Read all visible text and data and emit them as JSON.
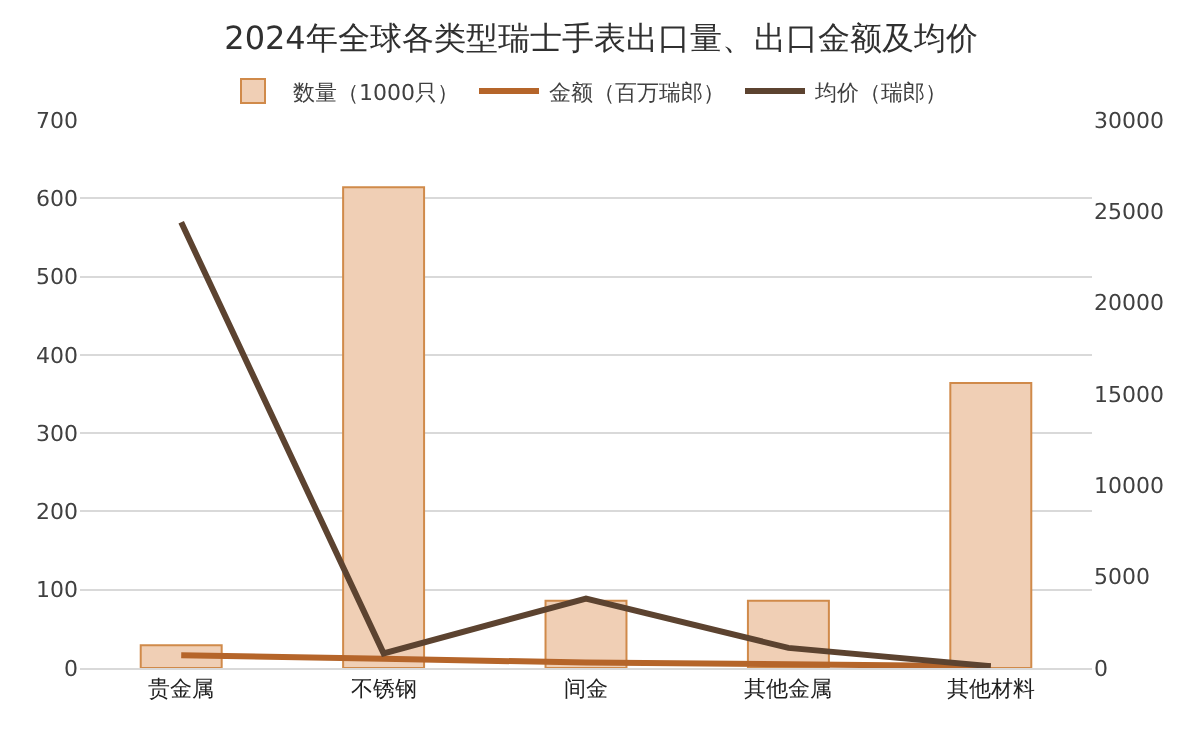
{
  "chart_data": {
    "type": "bar",
    "title": "2024年全球各类型瑞士手表出口量、出口金额及均价",
    "categories": [
      "贵金属",
      "不锈钢",
      "间金",
      "其他金属",
      "其他材料"
    ],
    "series": [
      {
        "name": "数量（1000只）",
        "color": "#f0cfb5",
        "values": [
          29,
          614,
          86,
          86,
          364
        ]
      },
      {
        "name": "金额（百万瑞郎）",
        "type": "line",
        "axis": "y2",
        "color": "#b5652a",
        "values": [
          700,
          500,
          300,
          200,
          100
        ]
      },
      {
        "name": "均价（瑞郎）",
        "type": "line",
        "axis": "y2",
        "color": "#5c4330",
        "values": [
          24400,
          800,
          3800,
          1100,
          100
        ]
      }
    ],
    "ylim": [
      0,
      700
    ],
    "yticks": [
      0,
      100,
      200,
      300,
      400,
      500,
      600,
      700
    ],
    "y2lim": [
      0,
      30000
    ],
    "y2ticks": [
      0,
      5000,
      10000,
      15000,
      20000,
      25000,
      30000
    ],
    "grid": "y",
    "legend": "top",
    "marker": "none",
    "line_style": "solid"
  }
}
